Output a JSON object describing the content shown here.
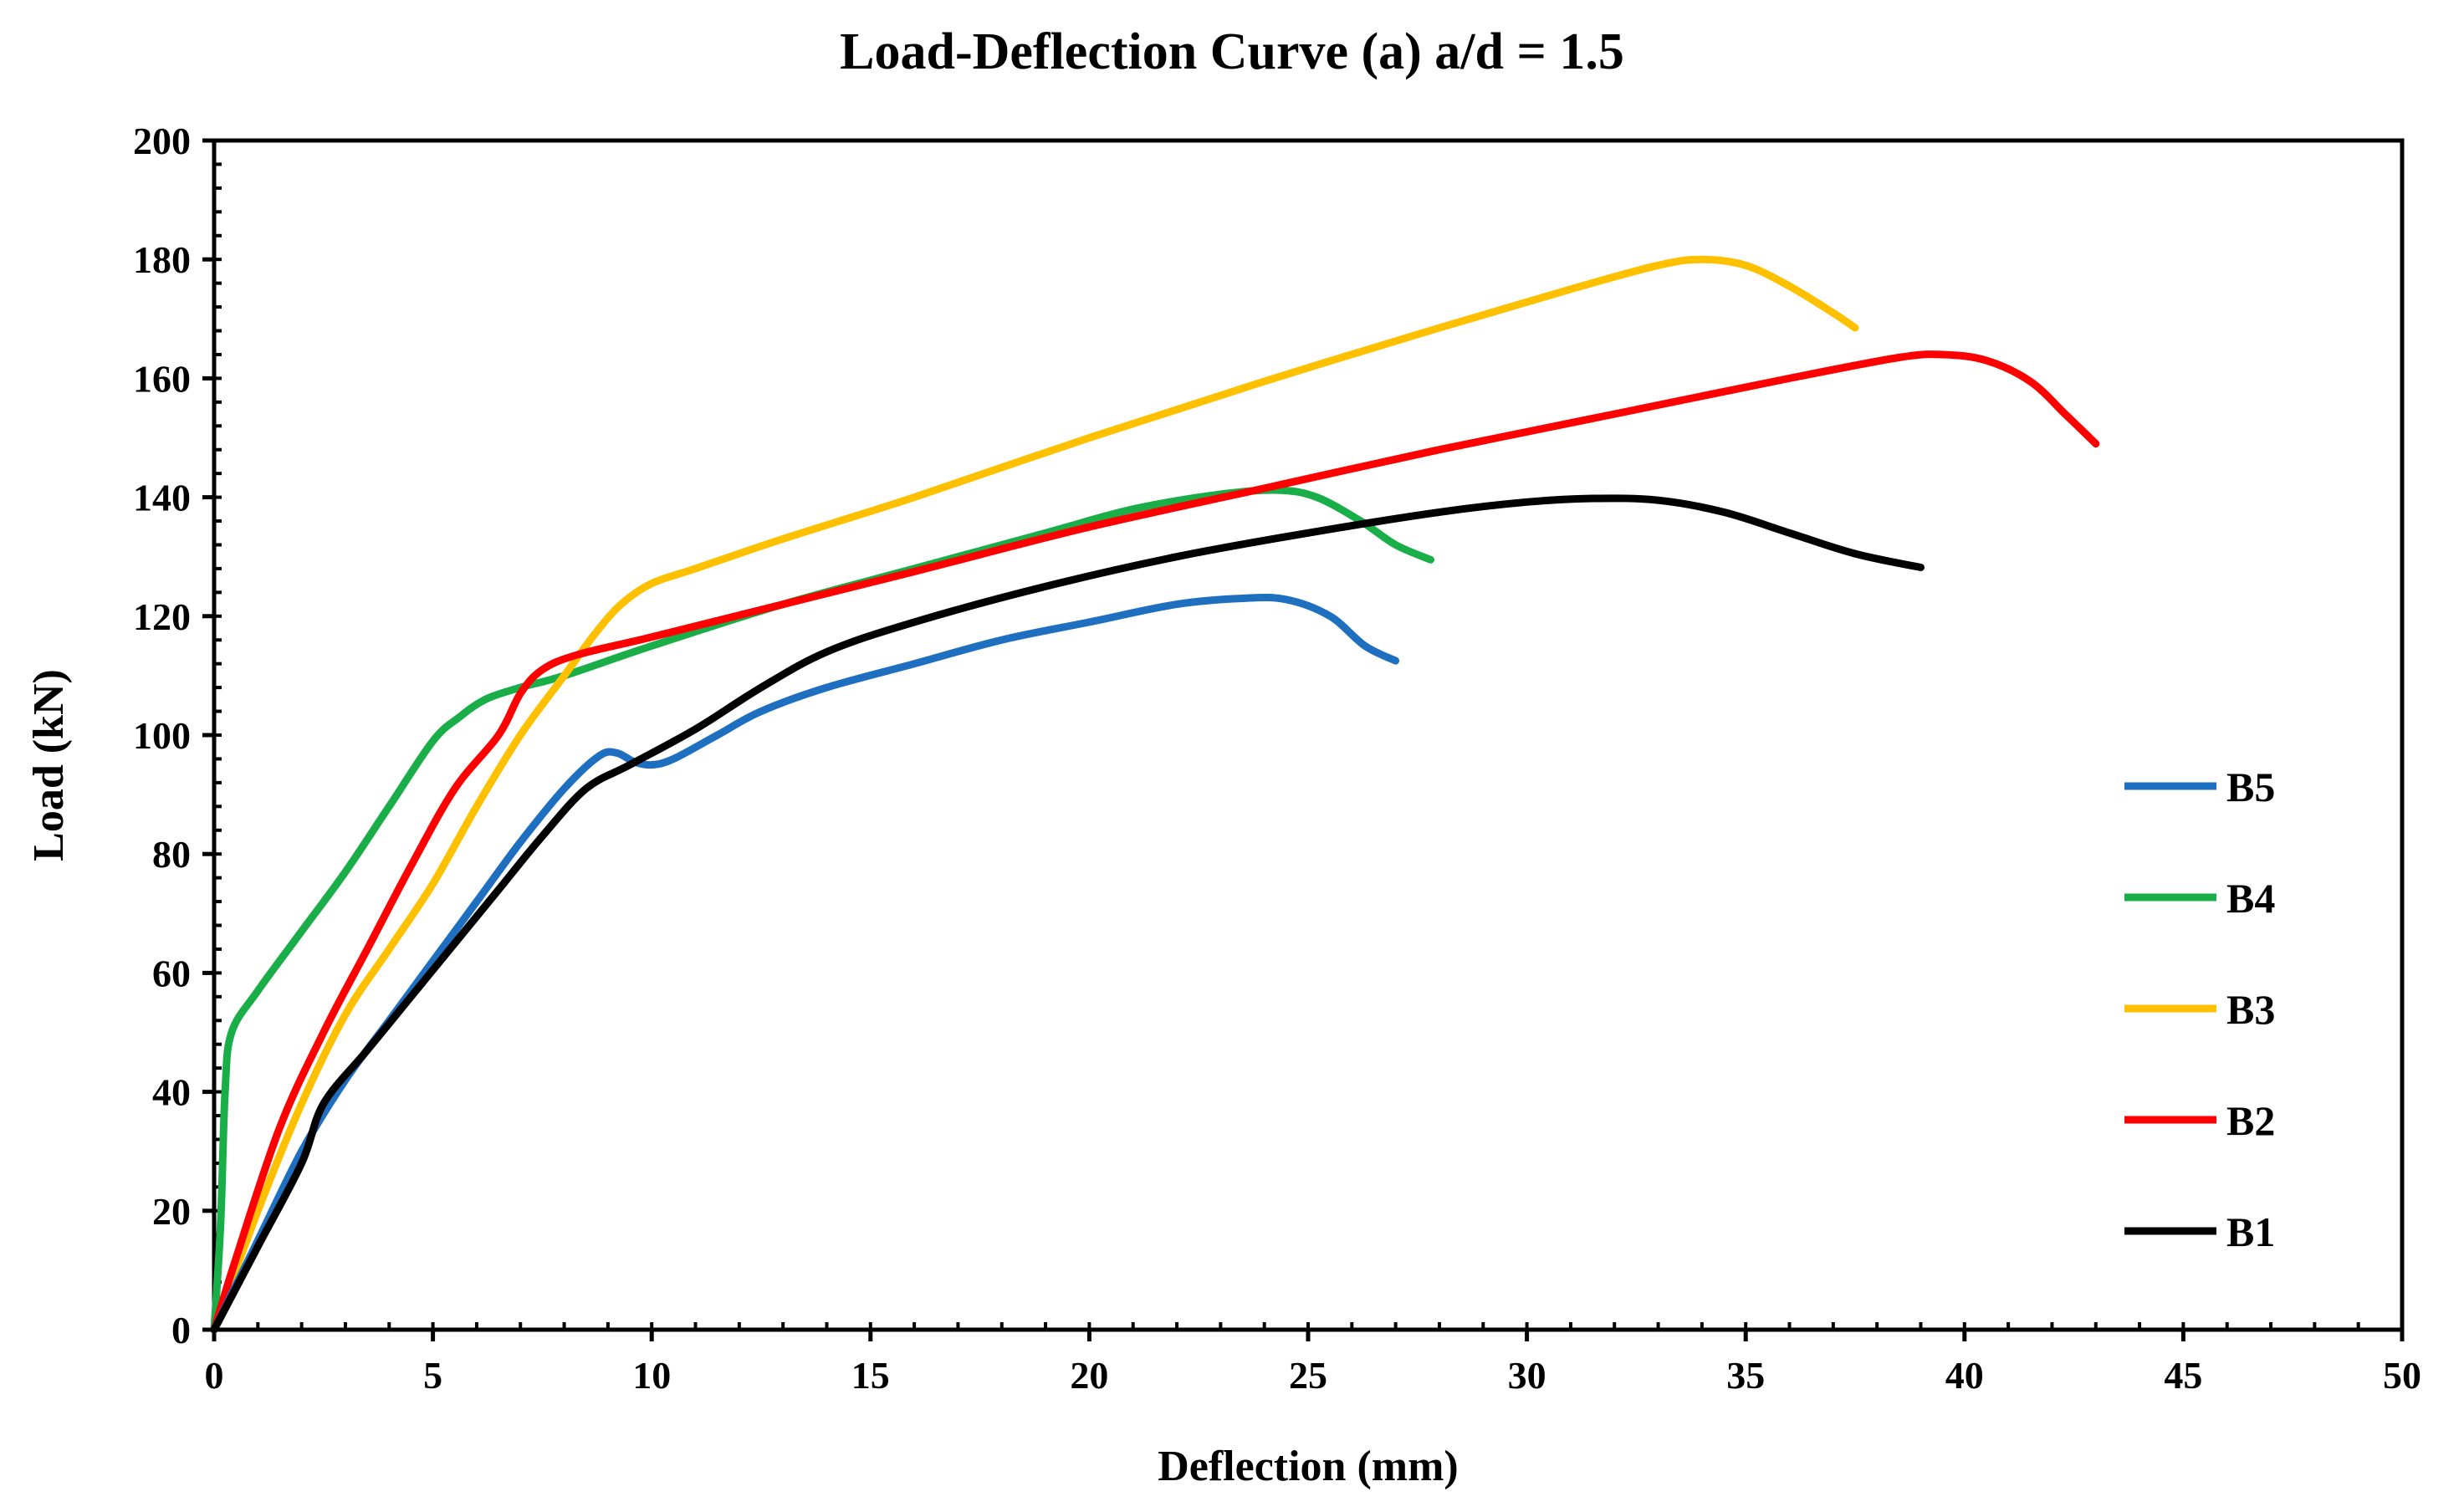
{
  "chart_data": {
    "type": "line",
    "title": "Load-Deflection Curve (a) a/d = 1.5",
    "xlabel": "Deflection (mm)",
    "ylabel": "Load (kN)",
    "xlim": [
      0,
      50
    ],
    "ylim": [
      0,
      200
    ],
    "xticks": [
      0,
      5,
      10,
      15,
      20,
      25,
      30,
      35,
      40,
      45,
      50
    ],
    "yticks": [
      0,
      20,
      40,
      60,
      80,
      100,
      120,
      140,
      160,
      180,
      200
    ],
    "grid": false,
    "legend_position": "right",
    "series": [
      {
        "name": "B5",
        "color": "#1F6FC0",
        "points": [
          [
            0,
            0
          ],
          [
            1,
            15
          ],
          [
            2,
            30
          ],
          [
            3,
            42
          ],
          [
            4,
            52
          ],
          [
            5,
            62
          ],
          [
            6,
            72
          ],
          [
            7,
            82
          ],
          [
            8,
            91
          ],
          [
            8.8,
            96.5
          ],
          [
            9.2,
            97
          ],
          [
            9.6,
            95.5
          ],
          [
            10,
            95
          ],
          [
            10.5,
            96
          ],
          [
            11.5,
            100
          ],
          [
            12.5,
            104
          ],
          [
            14,
            108
          ],
          [
            16,
            112
          ],
          [
            18,
            116
          ],
          [
            20,
            119
          ],
          [
            22,
            122
          ],
          [
            23.5,
            123
          ],
          [
            24.5,
            122.8
          ],
          [
            25.5,
            120
          ],
          [
            26.3,
            115
          ],
          [
            27,
            112.5
          ]
        ]
      },
      {
        "name": "B4",
        "color": "#1AAE48",
        "points": [
          [
            0,
            0
          ],
          [
            0.15,
            18
          ],
          [
            0.25,
            40
          ],
          [
            0.4,
            50
          ],
          [
            1,
            57
          ],
          [
            2,
            67
          ],
          [
            3,
            77
          ],
          [
            4,
            88
          ],
          [
            5,
            99
          ],
          [
            5.6,
            103
          ],
          [
            6.2,
            106
          ],
          [
            7,
            108
          ],
          [
            8,
            110
          ],
          [
            10,
            115
          ],
          [
            13,
            122
          ],
          [
            16,
            128
          ],
          [
            19,
            134
          ],
          [
            21,
            138
          ],
          [
            23,
            140.5
          ],
          [
            24.3,
            141.2
          ],
          [
            25.2,
            140
          ],
          [
            26.2,
            136
          ],
          [
            27,
            132
          ],
          [
            27.8,
            129.5
          ]
        ]
      },
      {
        "name": "B3",
        "color": "#FFC000",
        "points": [
          [
            0,
            0
          ],
          [
            1,
            20
          ],
          [
            2,
            38
          ],
          [
            3,
            53
          ],
          [
            4,
            64
          ],
          [
            5,
            75
          ],
          [
            6,
            88
          ],
          [
            7,
            100
          ],
          [
            8,
            110
          ],
          [
            8.7,
            117
          ],
          [
            9.3,
            122
          ],
          [
            10,
            125.5
          ],
          [
            11,
            128
          ],
          [
            13,
            133
          ],
          [
            16,
            140
          ],
          [
            20,
            150
          ],
          [
            24,
            159.5
          ],
          [
            28,
            168.5
          ],
          [
            31,
            175
          ],
          [
            33,
            179
          ],
          [
            34,
            180
          ],
          [
            35,
            179
          ],
          [
            36,
            175.5
          ],
          [
            37,
            171
          ],
          [
            37.5,
            168.5
          ]
        ]
      },
      {
        "name": "B2",
        "color": "#FF0000",
        "points": [
          [
            0,
            0
          ],
          [
            0.5,
            12
          ],
          [
            1.5,
            34
          ],
          [
            2.5,
            50
          ],
          [
            3.5,
            64
          ],
          [
            4.5,
            78
          ],
          [
            5.5,
            91
          ],
          [
            6.5,
            100
          ],
          [
            7,
            107
          ],
          [
            7.5,
            111
          ],
          [
            8.3,
            113.5
          ],
          [
            10,
            116.5
          ],
          [
            13,
            122
          ],
          [
            16,
            127.5
          ],
          [
            20,
            135
          ],
          [
            24,
            141.5
          ],
          [
            28,
            148
          ],
          [
            32,
            154
          ],
          [
            36,
            160
          ],
          [
            38.5,
            163.5
          ],
          [
            39.5,
            164
          ],
          [
            40.5,
            163
          ],
          [
            41.5,
            159.5
          ],
          [
            42.3,
            154
          ],
          [
            43,
            149
          ]
        ]
      },
      {
        "name": "B1",
        "color": "#000000",
        "points": [
          [
            0,
            0
          ],
          [
            1,
            14
          ],
          [
            2,
            28
          ],
          [
            2.5,
            38
          ],
          [
            3.5,
            47
          ],
          [
            4.5,
            56
          ],
          [
            5.5,
            65
          ],
          [
            6.5,
            74
          ],
          [
            7.5,
            83
          ],
          [
            8.5,
            91
          ],
          [
            9.5,
            95
          ],
          [
            11,
            101
          ],
          [
            12.5,
            108
          ],
          [
            14,
            114
          ],
          [
            16,
            119
          ],
          [
            19,
            125
          ],
          [
            22,
            130
          ],
          [
            25,
            134
          ],
          [
            28,
            137.5
          ],
          [
            30,
            139.2
          ],
          [
            31.5,
            139.8
          ],
          [
            33,
            139.5
          ],
          [
            34.5,
            137.5
          ],
          [
            36,
            134
          ],
          [
            37.5,
            130.5
          ],
          [
            39,
            128.2
          ]
        ]
      }
    ],
    "legend_order": [
      "B5",
      "B4",
      "B3",
      "B2",
      "B1"
    ]
  }
}
